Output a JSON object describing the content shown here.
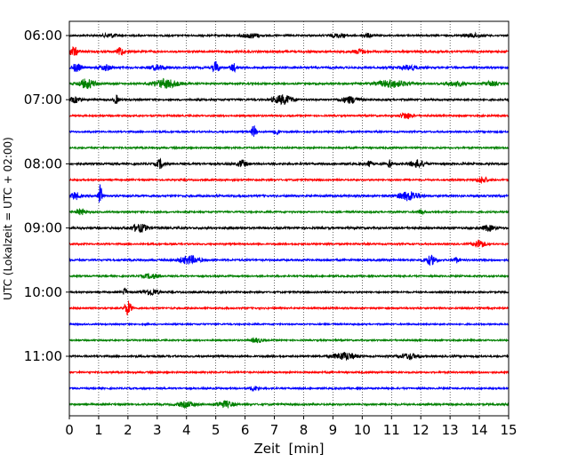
{
  "chart_data": {
    "type": "line",
    "title": "",
    "xlabel": "Zeit  [min]",
    "ylabel": "UTC (Lokalzeit = UTC + 02:00)",
    "xlim": [
      0,
      15
    ],
    "x_ticks": [
      "0",
      "1",
      "2",
      "3",
      "4",
      "5",
      "6",
      "7",
      "8",
      "9",
      "10",
      "11",
      "12",
      "13",
      "14",
      "15"
    ],
    "y_ticks": [
      "06:00",
      "07:00",
      "08:00",
      "09:00",
      "10:00",
      "11:00"
    ],
    "grid": "vertical dotted",
    "colors": [
      "#000000",
      "#ff0000",
      "#0000ff",
      "#008000"
    ],
    "traces": [
      {
        "start": "06:00",
        "color": "#000000",
        "amp": 0.9,
        "events": [
          {
            "t": 1.4,
            "a": 2.2,
            "d": 0.25
          },
          {
            "t": 6.2,
            "a": 2.5,
            "d": 0.3
          },
          {
            "t": 9.2,
            "a": 2.0,
            "d": 0.3
          },
          {
            "t": 10.2,
            "a": 2.0,
            "d": 0.2
          },
          {
            "t": 13.8,
            "a": 2.0,
            "d": 0.3
          }
        ]
      },
      {
        "start": "06:15",
        "color": "#ff0000",
        "amp": 1.1,
        "events": [
          {
            "t": 0.15,
            "a": 5,
            "d": 0.15
          },
          {
            "t": 1.75,
            "a": 5,
            "d": 0.1
          },
          {
            "t": 9.9,
            "a": 2.5,
            "d": 0.2
          }
        ]
      },
      {
        "start": "06:30",
        "color": "#0000ff",
        "amp": 1.1,
        "events": [
          {
            "t": 0.25,
            "a": 4.5,
            "d": 0.15
          },
          {
            "t": 1.25,
            "a": 3,
            "d": 0.2
          },
          {
            "t": 3.0,
            "a": 2.5,
            "d": 0.3
          },
          {
            "t": 5.0,
            "a": 7,
            "d": 0.1
          },
          {
            "t": 5.6,
            "a": 4.5,
            "d": 0.1
          },
          {
            "t": 11.6,
            "a": 2.5,
            "d": 0.3
          }
        ]
      },
      {
        "start": "06:45",
        "color": "#008000",
        "amp": 1.0,
        "events": [
          {
            "t": 0.6,
            "a": 5,
            "d": 0.3
          },
          {
            "t": 3.3,
            "a": 5,
            "d": 0.4
          },
          {
            "t": 11.0,
            "a": 4,
            "d": 0.5
          },
          {
            "t": 13.2,
            "a": 2.5,
            "d": 0.3
          },
          {
            "t": 14.4,
            "a": 2.5,
            "d": 0.2
          }
        ]
      },
      {
        "start": "07:00",
        "color": "#000000",
        "amp": 1.0,
        "events": [
          {
            "t": 0.2,
            "a": 3,
            "d": 0.2
          },
          {
            "t": 1.6,
            "a": 5,
            "d": 0.08
          },
          {
            "t": 7.3,
            "a": 5,
            "d": 0.35
          },
          {
            "t": 9.6,
            "a": 3.5,
            "d": 0.3
          }
        ]
      },
      {
        "start": "07:15",
        "color": "#ff0000",
        "amp": 0.9,
        "events": [
          {
            "t": 11.5,
            "a": 3.5,
            "d": 0.2
          }
        ]
      },
      {
        "start": "07:30",
        "color": "#0000ff",
        "amp": 0.9,
        "events": [
          {
            "t": 6.3,
            "a": 7,
            "d": 0.08
          },
          {
            "t": 7.05,
            "a": 4,
            "d": 0.1
          }
        ]
      },
      {
        "start": "07:45",
        "color": "#008000",
        "amp": 0.9,
        "events": []
      },
      {
        "start": "08:00",
        "color": "#000000",
        "amp": 1.1,
        "events": [
          {
            "t": 3.1,
            "a": 5,
            "d": 0.12
          },
          {
            "t": 5.9,
            "a": 4,
            "d": 0.15
          },
          {
            "t": 10.25,
            "a": 5,
            "d": 0.06
          },
          {
            "t": 10.95,
            "a": 5,
            "d": 0.06
          },
          {
            "t": 11.9,
            "a": 4,
            "d": 0.25
          }
        ]
      },
      {
        "start": "08:15",
        "color": "#ff0000",
        "amp": 0.9,
        "events": [
          {
            "t": 14.1,
            "a": 3.5,
            "d": 0.2
          }
        ]
      },
      {
        "start": "08:30",
        "color": "#0000ff",
        "amp": 1.1,
        "events": [
          {
            "t": 0.2,
            "a": 4,
            "d": 0.15
          },
          {
            "t": 1.05,
            "a": 14,
            "d": 0.06
          },
          {
            "t": 11.6,
            "a": 5,
            "d": 0.35
          }
        ]
      },
      {
        "start": "08:45",
        "color": "#008000",
        "amp": 0.9,
        "events": [
          {
            "t": 0.4,
            "a": 3.5,
            "d": 0.15
          },
          {
            "t": 12.0,
            "a": 2.5,
            "d": 0.1
          }
        ]
      },
      {
        "start": "09:00",
        "color": "#000000",
        "amp": 1.1,
        "events": [
          {
            "t": 2.4,
            "a": 4,
            "d": 0.3
          },
          {
            "t": 14.3,
            "a": 3,
            "d": 0.2
          }
        ]
      },
      {
        "start": "09:15",
        "color": "#ff0000",
        "amp": 0.9,
        "events": [
          {
            "t": 14.0,
            "a": 4.5,
            "d": 0.2
          }
        ]
      },
      {
        "start": "09:30",
        "color": "#0000ff",
        "amp": 1.0,
        "events": [
          {
            "t": 4.1,
            "a": 4.5,
            "d": 0.35
          },
          {
            "t": 12.35,
            "a": 5,
            "d": 0.2
          },
          {
            "t": 13.2,
            "a": 3,
            "d": 0.1
          }
        ]
      },
      {
        "start": "09:45",
        "color": "#008000",
        "amp": 0.9,
        "events": [
          {
            "t": 2.8,
            "a": 2.5,
            "d": 0.3
          }
        ]
      },
      {
        "start": "10:00",
        "color": "#000000",
        "amp": 0.9,
        "events": [
          {
            "t": 1.9,
            "a": 5,
            "d": 0.06
          },
          {
            "t": 2.8,
            "a": 3.5,
            "d": 0.25
          }
        ]
      },
      {
        "start": "10:15",
        "color": "#ff0000",
        "amp": 0.9,
        "events": [
          {
            "t": 2.0,
            "a": 8,
            "d": 0.12
          }
        ]
      },
      {
        "start": "10:30",
        "color": "#0000ff",
        "amp": 0.8,
        "events": []
      },
      {
        "start": "10:45",
        "color": "#008000",
        "amp": 0.8,
        "events": [
          {
            "t": 6.4,
            "a": 2.5,
            "d": 0.2
          }
        ]
      },
      {
        "start": "11:00",
        "color": "#000000",
        "amp": 1.0,
        "events": [
          {
            "t": 9.4,
            "a": 4,
            "d": 0.4
          },
          {
            "t": 11.6,
            "a": 3,
            "d": 0.3
          }
        ]
      },
      {
        "start": "11:15",
        "color": "#ff0000",
        "amp": 0.9,
        "events": []
      },
      {
        "start": "11:30",
        "color": "#0000ff",
        "amp": 0.9,
        "events": [
          {
            "t": 6.3,
            "a": 2.5,
            "d": 0.15
          }
        ]
      },
      {
        "start": "11:45",
        "color": "#008000",
        "amp": 1.0,
        "events": [
          {
            "t": 4.0,
            "a": 3,
            "d": 0.3
          },
          {
            "t": 5.3,
            "a": 3.5,
            "d": 0.3
          }
        ]
      }
    ]
  }
}
